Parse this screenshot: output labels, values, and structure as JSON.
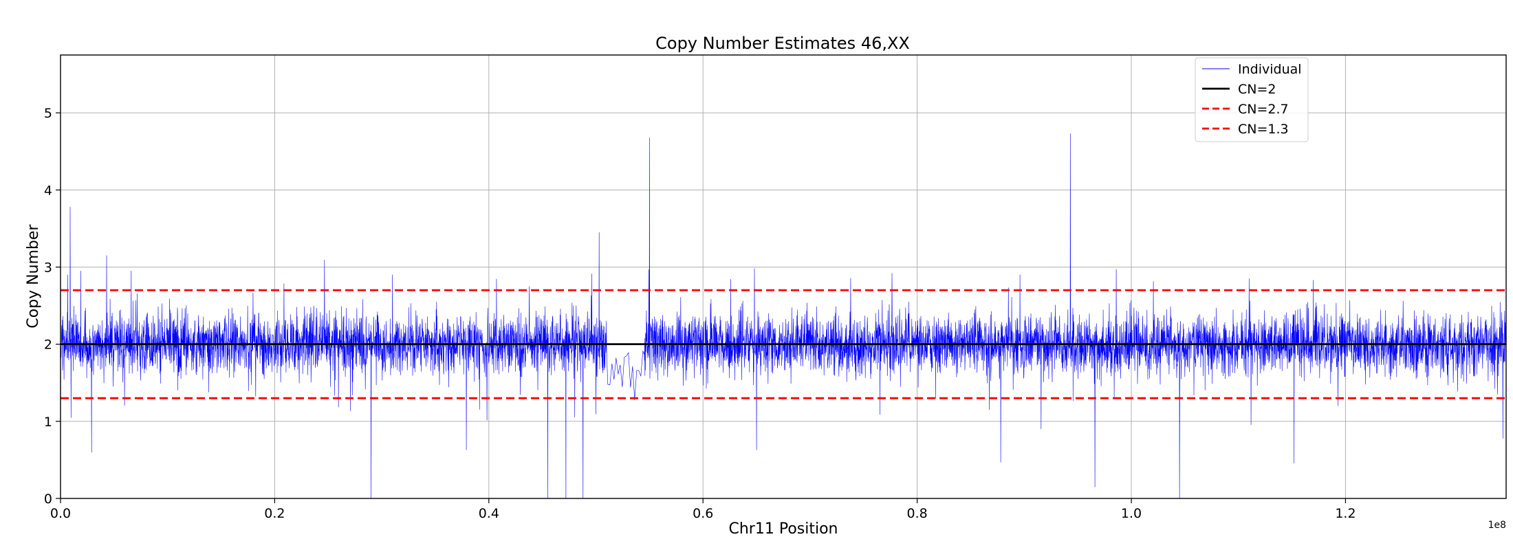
{
  "chart_data": {
    "type": "line",
    "title": "Copy Number Estimates 46,XX",
    "xlabel": "Chr11 Position",
    "ylabel": "Copy Number",
    "x_offset_label": "1e8",
    "xlim": [
      0,
      135000000
    ],
    "ylim": [
      0,
      5.75
    ],
    "x_ticks": [
      0.0,
      0.2,
      0.4,
      0.6,
      0.8,
      1.0,
      1.2
    ],
    "x_tick_labels": [
      "0.0",
      "0.2",
      "0.4",
      "0.6",
      "0.8",
      "1.0",
      "1.2"
    ],
    "y_ticks": [
      0,
      1,
      2,
      3,
      4,
      5
    ],
    "y_tick_labels": [
      "0",
      "1",
      "2",
      "3",
      "4",
      "5"
    ],
    "grid": true,
    "legend_position": "top-right",
    "series": [
      {
        "name": "Individual",
        "style": "thin-line",
        "color": "#0000ff",
        "mean": 2.0,
        "typical_low": 1.5,
        "typical_high": 2.5,
        "gap": [
          51000000,
          54500000
        ],
        "spikes": [
          {
            "x": 900000,
            "y": 3.78
          },
          {
            "x": 4300000,
            "y": 3.15
          },
          {
            "x": 6600000,
            "y": 2.95
          },
          {
            "x": 31000000,
            "y": 2.9
          },
          {
            "x": 50300000,
            "y": 3.45
          },
          {
            "x": 55000000,
            "y": 4.68
          },
          {
            "x": 64800000,
            "y": 2.98
          },
          {
            "x": 89600000,
            "y": 2.9
          },
          {
            "x": 94300000,
            "y": 4.73
          },
          {
            "x": 111000000,
            "y": 2.85
          },
          {
            "x": 117000000,
            "y": 2.83
          }
        ],
        "dips": [
          {
            "x": 2900000,
            "y": 0.6
          },
          {
            "x": 29000000,
            "y": 0.0
          },
          {
            "x": 37900000,
            "y": 0.63
          },
          {
            "x": 45500000,
            "y": 0.0
          },
          {
            "x": 47200000,
            "y": 0.0
          },
          {
            "x": 48800000,
            "y": 0.0
          },
          {
            "x": 65000000,
            "y": 0.63
          },
          {
            "x": 87800000,
            "y": 0.47
          },
          {
            "x": 96600000,
            "y": 0.15
          },
          {
            "x": 104500000,
            "y": 0.0
          },
          {
            "x": 115200000,
            "y": 0.46
          },
          {
            "x": 134700000,
            "y": 0.78
          }
        ]
      },
      {
        "name": "CN=2",
        "style": "solid",
        "color": "#000000",
        "value": 2
      },
      {
        "name": "CN=2.7",
        "style": "dashed",
        "color": "#ff0000",
        "value": 2.7
      },
      {
        "name": "CN=1.3",
        "style": "dashed",
        "color": "#ff0000",
        "value": 1.3
      }
    ]
  }
}
